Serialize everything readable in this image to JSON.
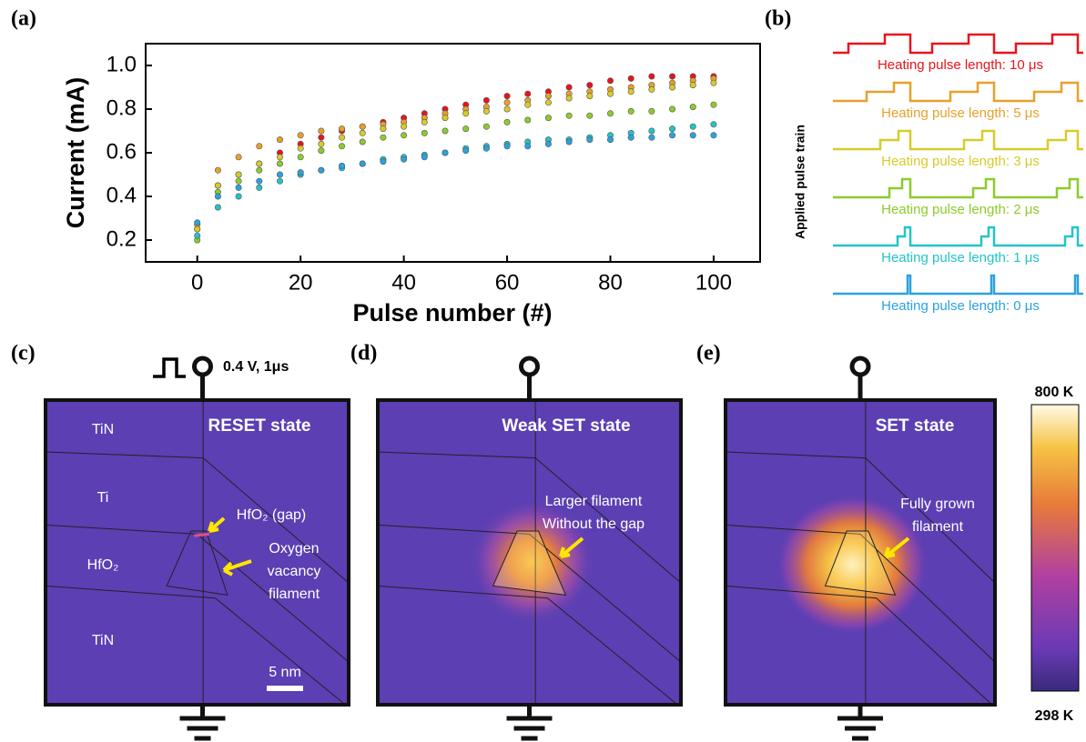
{
  "chart_data": {
    "type": "scatter",
    "panel_label": "(a)",
    "xlabel": "Pulse number (#)",
    "ylabel": "Current (mA)",
    "x": [
      0,
      4,
      8,
      12,
      16,
      20,
      24,
      28,
      32,
      36,
      40,
      44,
      48,
      52,
      56,
      60,
      64,
      68,
      72,
      76,
      80,
      84,
      88,
      92,
      96,
      100
    ],
    "series": [
      {
        "name": "Heating pulse length: 10 μs",
        "color": "#e8141c",
        "values": [
          0.25,
          0.45,
          0.5,
          0.55,
          0.6,
          0.64,
          0.67,
          0.7,
          0.72,
          0.74,
          0.76,
          0.78,
          0.8,
          0.82,
          0.84,
          0.86,
          0.87,
          0.88,
          0.9,
          0.91,
          0.93,
          0.94,
          0.95,
          0.95,
          0.95,
          0.95
        ]
      },
      {
        "name": "Heating pulse length: 5 μs",
        "color": "#e8a02a",
        "values": [
          0.27,
          0.52,
          0.58,
          0.63,
          0.66,
          0.68,
          0.7,
          0.71,
          0.72,
          0.73,
          0.74,
          0.76,
          0.78,
          0.8,
          0.81,
          0.83,
          0.84,
          0.86,
          0.87,
          0.88,
          0.89,
          0.9,
          0.91,
          0.92,
          0.93,
          0.94
        ]
      },
      {
        "name": "Heating pulse length: 3 μs",
        "color": "#d7cb2a",
        "values": [
          0.25,
          0.45,
          0.5,
          0.55,
          0.58,
          0.62,
          0.64,
          0.67,
          0.69,
          0.71,
          0.72,
          0.74,
          0.76,
          0.78,
          0.79,
          0.8,
          0.82,
          0.83,
          0.85,
          0.86,
          0.87,
          0.88,
          0.89,
          0.9,
          0.91,
          0.92
        ]
      },
      {
        "name": "Heating pulse length: 2 μs",
        "color": "#8ccc2a",
        "values": [
          0.2,
          0.42,
          0.47,
          0.52,
          0.55,
          0.58,
          0.61,
          0.63,
          0.65,
          0.67,
          0.68,
          0.69,
          0.7,
          0.71,
          0.72,
          0.74,
          0.75,
          0.76,
          0.77,
          0.77,
          0.78,
          0.79,
          0.79,
          0.8,
          0.81,
          0.82
        ]
      },
      {
        "name": "Heating pulse length: 1 μs",
        "color": "#22c4c8",
        "values": [
          0.22,
          0.35,
          0.4,
          0.44,
          0.47,
          0.5,
          0.52,
          0.53,
          0.55,
          0.57,
          0.58,
          0.59,
          0.6,
          0.62,
          0.63,
          0.64,
          0.65,
          0.66,
          0.66,
          0.67,
          0.68,
          0.69,
          0.7,
          0.71,
          0.72,
          0.73
        ]
      },
      {
        "name": "Heating pulse length: 0 μs",
        "color": "#2aa2e0",
        "values": [
          0.28,
          0.4,
          0.44,
          0.47,
          0.5,
          0.51,
          0.52,
          0.54,
          0.55,
          0.56,
          0.57,
          0.58,
          0.6,
          0.61,
          0.62,
          0.63,
          0.63,
          0.64,
          0.65,
          0.66,
          0.66,
          0.67,
          0.67,
          0.68,
          0.68,
          0.68
        ]
      }
    ],
    "xlim": [
      -10,
      109
    ],
    "xticks": [
      0,
      20,
      40,
      60,
      80,
      100
    ],
    "ylim": [
      0.1,
      1.1
    ],
    "yticks": [
      0.2,
      0.4,
      0.6,
      0.8,
      {
        "value": 1,
        "label": "1.0"
      }
    ]
  },
  "figure": {
    "panel_b": "(b)",
    "pulse_train_label": "Applied pulse train",
    "pulse_label": "0.4 V, 1μs",
    "panels": [
      {
        "label": "(c)",
        "state": "RESET state",
        "layers": [
          "TiN",
          "Ti",
          "HfO₂",
          "TiN"
        ],
        "notes": [
          "HfO₂ (gap)",
          "Oxygen",
          "vacancy",
          "filament"
        ],
        "scale": "5 nm"
      },
      {
        "label": "(d)",
        "state": "Weak SET state",
        "notes": [
          "Larger filament",
          "Without the gap"
        ]
      },
      {
        "label": "(e)",
        "state": "SET state",
        "notes": [
          "Fully grown",
          "filament"
        ]
      }
    ],
    "colorbar": {
      "max": "800 K",
      "min": "298 K"
    }
  }
}
